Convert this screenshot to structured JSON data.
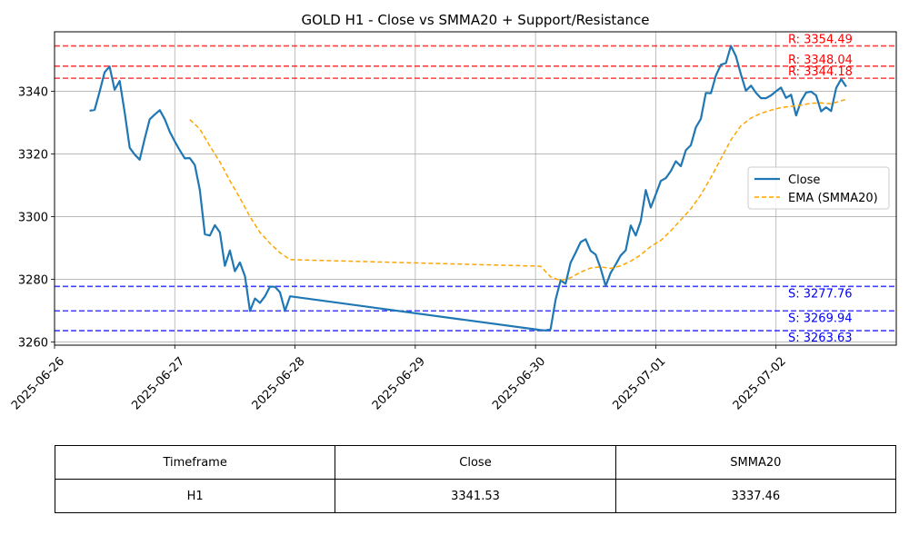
{
  "chart_data": {
    "type": "line",
    "title": "GOLD H1 - Close vs SMMA20 + Support/Resistance",
    "xlabel": "",
    "ylabel": "",
    "ylim": [
      3259,
      3359
    ],
    "xlim": [
      "2025-06-26 00:00",
      "2025-07-03 00:00"
    ],
    "x_ticks": [
      "2025-06-26",
      "2025-06-27",
      "2025-06-28",
      "2025-06-29",
      "2025-06-30",
      "2025-07-01",
      "2025-07-02"
    ],
    "y_ticks": [
      3260,
      3280,
      3300,
      3320,
      3340
    ],
    "grid": true,
    "legend_position": "center-right",
    "series": [
      {
        "name": "Close",
        "color": "#1f77b4",
        "style": "solid",
        "points": [
          [
            "2025-06-26 07:00",
            3333.8
          ],
          [
            "2025-06-26 08:00",
            3334.1
          ],
          [
            "2025-06-26 09:00",
            3339.9
          ],
          [
            "2025-06-26 10:00",
            3346.1
          ],
          [
            "2025-06-26 11:00",
            3347.9
          ],
          [
            "2025-06-26 12:00",
            3340.5
          ],
          [
            "2025-06-26 13:00",
            3343.3
          ],
          [
            "2025-06-26 14:00",
            3333.2
          ],
          [
            "2025-06-26 15:00",
            3322.0
          ],
          [
            "2025-06-26 16:00",
            3319.8
          ],
          [
            "2025-06-26 17:00",
            3318.2
          ],
          [
            "2025-06-26 18:00",
            3324.9
          ],
          [
            "2025-06-26 19:00",
            3331.1
          ],
          [
            "2025-06-26 20:00",
            3332.6
          ],
          [
            "2025-06-26 21:00",
            3334.0
          ],
          [
            "2025-06-26 22:00",
            3331.1
          ],
          [
            "2025-06-26 23:00",
            3327.1
          ],
          [
            "2025-06-27 00:00",
            3324.0
          ],
          [
            "2025-06-27 01:00",
            3321.2
          ],
          [
            "2025-06-27 02:00",
            3318.6
          ],
          [
            "2025-06-27 03:00",
            3318.7
          ],
          [
            "2025-06-27 04:00",
            3316.5
          ],
          [
            "2025-06-27 05:00",
            3308.6
          ],
          [
            "2025-06-27 06:00",
            3294.4
          ],
          [
            "2025-06-27 07:00",
            3294.0
          ],
          [
            "2025-06-27 08:00",
            3297.3
          ],
          [
            "2025-06-27 09:00",
            3295.0
          ],
          [
            "2025-06-27 10:00",
            3284.3
          ],
          [
            "2025-06-27 11:00",
            3289.2
          ],
          [
            "2025-06-27 12:00",
            3282.6
          ],
          [
            "2025-06-27 13:00",
            3285.4
          ],
          [
            "2025-06-27 14:00",
            3281.0
          ],
          [
            "2025-06-27 15:00",
            3269.9
          ],
          [
            "2025-06-27 16:00",
            3273.9
          ],
          [
            "2025-06-27 17:00",
            3272.5
          ],
          [
            "2025-06-27 18:00",
            3274.6
          ],
          [
            "2025-06-27 19:00",
            3277.7
          ],
          [
            "2025-06-27 20:00",
            3277.6
          ],
          [
            "2025-06-27 21:00",
            3275.9
          ],
          [
            "2025-06-27 22:00",
            3269.9
          ],
          [
            "2025-06-27 23:00",
            3274.6
          ],
          [
            "2025-06-30 01:00",
            3263.8
          ],
          [
            "2025-06-30 02:00",
            3263.7
          ],
          [
            "2025-06-30 03:00",
            3264.1
          ],
          [
            "2025-06-30 04:00",
            3273.5
          ],
          [
            "2025-06-30 05:00",
            3279.7
          ],
          [
            "2025-06-30 06:00",
            3278.6
          ],
          [
            "2025-06-30 07:00",
            3285.3
          ],
          [
            "2025-06-30 08:00",
            3288.5
          ],
          [
            "2025-06-30 09:00",
            3291.9
          ],
          [
            "2025-06-30 10:00",
            3292.8
          ],
          [
            "2025-06-30 11:00",
            3289.1
          ],
          [
            "2025-06-30 12:00",
            3287.9
          ],
          [
            "2025-06-30 13:00",
            3283.5
          ],
          [
            "2025-06-30 14:00",
            3277.9
          ],
          [
            "2025-06-30 15:00",
            3282.1
          ],
          [
            "2025-06-30 16:00",
            3284.7
          ],
          [
            "2025-06-30 17:00",
            3287.6
          ],
          [
            "2025-06-30 18:00",
            3289.3
          ],
          [
            "2025-06-30 19:00",
            3297.2
          ],
          [
            "2025-06-30 20:00",
            3294.0
          ],
          [
            "2025-06-30 21:00",
            3298.6
          ],
          [
            "2025-06-30 22:00",
            3308.5
          ],
          [
            "2025-06-30 23:00",
            3302.9
          ],
          [
            "2025-07-01 00:00",
            3307.1
          ],
          [
            "2025-07-01 01:00",
            3311.4
          ],
          [
            "2025-07-01 02:00",
            3312.3
          ],
          [
            "2025-07-01 03:00",
            3314.6
          ],
          [
            "2025-07-01 04:00",
            3317.7
          ],
          [
            "2025-07-01 05:00",
            3316.1
          ],
          [
            "2025-07-01 06:00",
            3321.2
          ],
          [
            "2025-07-01 07:00",
            3322.8
          ],
          [
            "2025-07-01 08:00",
            3328.5
          ],
          [
            "2025-07-01 09:00",
            3331.2
          ],
          [
            "2025-07-01 10:00",
            3339.5
          ],
          [
            "2025-07-01 11:00",
            3339.4
          ],
          [
            "2025-07-01 12:00",
            3345.1
          ],
          [
            "2025-07-01 13:00",
            3348.5
          ],
          [
            "2025-07-01 14:00",
            3349.0
          ],
          [
            "2025-07-01 15:00",
            3354.5
          ],
          [
            "2025-07-01 16:00",
            3351.2
          ],
          [
            "2025-07-01 17:00",
            3345.4
          ],
          [
            "2025-07-01 18:00",
            3340.2
          ],
          [
            "2025-07-01 19:00",
            3341.8
          ],
          [
            "2025-07-01 20:00",
            3339.5
          ],
          [
            "2025-07-01 21:00",
            3337.8
          ],
          [
            "2025-07-01 22:00",
            3337.8
          ],
          [
            "2025-07-01 23:00",
            3338.7
          ],
          [
            "2025-07-02 00:00",
            3340.0
          ],
          [
            "2025-07-02 01:00",
            3341.2
          ],
          [
            "2025-07-02 02:00",
            3337.9
          ],
          [
            "2025-07-02 03:00",
            3338.9
          ],
          [
            "2025-07-02 04:00",
            3332.3
          ],
          [
            "2025-07-02 05:00",
            3336.9
          ],
          [
            "2025-07-02 06:00",
            3339.6
          ],
          [
            "2025-07-02 07:00",
            3339.9
          ],
          [
            "2025-07-02 08:00",
            3338.7
          ],
          [
            "2025-07-02 09:00",
            3333.6
          ],
          [
            "2025-07-02 10:00",
            3334.9
          ],
          [
            "2025-07-02 11:00",
            3333.7
          ],
          [
            "2025-07-02 12:00",
            3341.1
          ],
          [
            "2025-07-02 13:00",
            3343.9
          ],
          [
            "2025-07-02 14:00",
            3341.5
          ]
        ]
      },
      {
        "name": "EMA (SMMA20)",
        "color": "#ffa500",
        "style": "dashed",
        "points": [
          [
            "2025-06-27 03:00",
            3331.0
          ],
          [
            "2025-06-27 05:00",
            3328.0
          ],
          [
            "2025-06-27 07:00",
            3322.5
          ],
          [
            "2025-06-27 09:00",
            3317.5
          ],
          [
            "2025-06-27 11:00",
            3311.5
          ],
          [
            "2025-06-27 13:00",
            3306.0
          ],
          [
            "2025-06-27 15:00",
            3300.0
          ],
          [
            "2025-06-27 17:00",
            3295.0
          ],
          [
            "2025-06-27 19:00",
            3291.5
          ],
          [
            "2025-06-27 21:00",
            3288.5
          ],
          [
            "2025-06-27 23:00",
            3286.3
          ],
          [
            "2025-06-30 01:00",
            3284.2
          ],
          [
            "2025-06-30 03:00",
            3280.8
          ],
          [
            "2025-06-30 05:00",
            3279.6
          ],
          [
            "2025-06-30 07:00",
            3280.5
          ],
          [
            "2025-06-30 09:00",
            3282.3
          ],
          [
            "2025-06-30 11:00",
            3283.6
          ],
          [
            "2025-06-30 13:00",
            3284.0
          ],
          [
            "2025-06-30 15:00",
            3283.5
          ],
          [
            "2025-06-30 17:00",
            3284.3
          ],
          [
            "2025-06-30 19:00",
            3285.8
          ],
          [
            "2025-06-30 21:00",
            3287.8
          ],
          [
            "2025-06-30 23:00",
            3290.5
          ],
          [
            "2025-07-01 01:00",
            3292.4
          ],
          [
            "2025-07-01 03:00",
            3295.5
          ],
          [
            "2025-07-01 05:00",
            3299.0
          ],
          [
            "2025-07-01 07:00",
            3302.5
          ],
          [
            "2025-07-01 09:00",
            3307.0
          ],
          [
            "2025-07-01 11:00",
            3312.5
          ],
          [
            "2025-07-01 13:00",
            3318.5
          ],
          [
            "2025-07-01 15:00",
            3324.5
          ],
          [
            "2025-07-01 17:00",
            3329.0
          ],
          [
            "2025-07-01 19:00",
            3331.5
          ],
          [
            "2025-07-01 21:00",
            3333.0
          ],
          [
            "2025-07-01 23:00",
            3334.0
          ],
          [
            "2025-07-02 01:00",
            3334.8
          ],
          [
            "2025-07-02 03:00",
            3335.2
          ],
          [
            "2025-07-02 05:00",
            3335.6
          ],
          [
            "2025-07-02 07:00",
            3336.2
          ],
          [
            "2025-07-02 09:00",
            3336.3
          ],
          [
            "2025-07-02 11:00",
            3336.0
          ],
          [
            "2025-07-02 13:00",
            3337.0
          ],
          [
            "2025-07-02 14:00",
            3337.4
          ]
        ]
      }
    ],
    "levels": [
      {
        "kind": "resistance",
        "label": "R: 3354.49",
        "value": 3354.49,
        "color": "#ff0000"
      },
      {
        "kind": "resistance",
        "label": "R: 3348.04",
        "value": 3348.04,
        "color": "#ff0000"
      },
      {
        "kind": "resistance",
        "label": "R: 3344.18",
        "value": 3344.18,
        "color": "#ff0000"
      },
      {
        "kind": "support",
        "label": "S: 3277.76",
        "value": 3277.76,
        "color": "#0000ff"
      },
      {
        "kind": "support",
        "label": "S: 3269.94",
        "value": 3269.94,
        "color": "#0000ff"
      },
      {
        "kind": "support",
        "label": "S: 3263.63",
        "value": 3263.63,
        "color": "#0000ff"
      }
    ]
  },
  "table": {
    "headers": [
      "Timeframe",
      "Close",
      "SMMA20"
    ],
    "row": [
      "H1",
      "3341.53",
      "3337.46"
    ]
  }
}
